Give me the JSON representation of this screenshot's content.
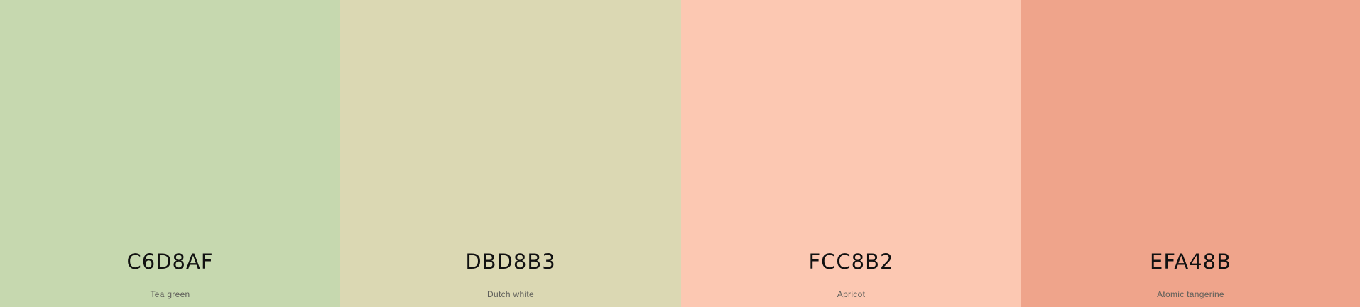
{
  "palette": {
    "swatches": [
      {
        "hex": "C6D8AF",
        "name": "Tea green",
        "color": "#C6D8AF"
      },
      {
        "hex": "DBD8B3",
        "name": "Dutch white",
        "color": "#DBD8B3"
      },
      {
        "hex": "FCC8B2",
        "name": "Apricot",
        "color": "#FCC8B2"
      },
      {
        "hex": "EFA48B",
        "name": "Atomic tangerine",
        "color": "#EFA48B"
      }
    ]
  }
}
